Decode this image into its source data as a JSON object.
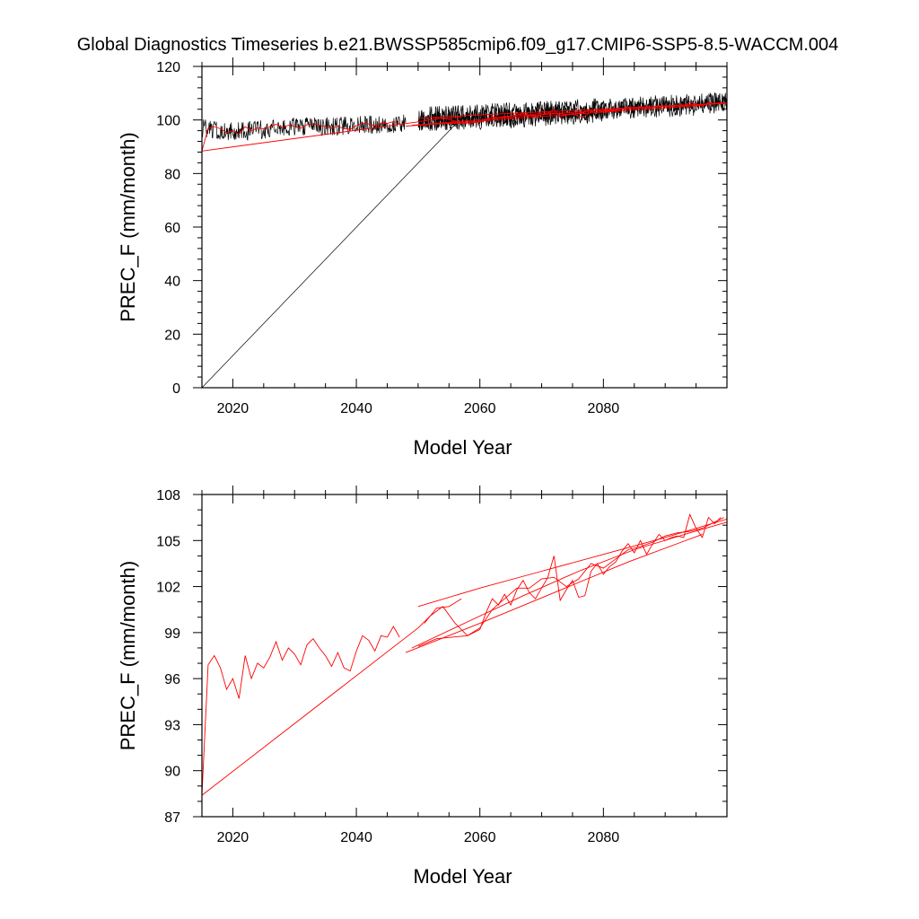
{
  "figure": {
    "title": "Global Diagnostics Timeseries b.e21.BWSSP585cmip6.f09_g17.CMIP6-SSP5-8.5-WACCM.004"
  },
  "colors": {
    "monthly": "#000000",
    "annual": "#ff0000",
    "axes": "#000000",
    "background": "#ffffff"
  },
  "chart_data": [
    {
      "type": "line",
      "xlabel": "Model Year",
      "ylabel": "PREC_F (mm/month)",
      "xlim": [
        2015,
        2100
      ],
      "ylim": [
        0,
        120
      ],
      "xticks": [
        2020,
        2040,
        2060,
        2080
      ],
      "yticks": [
        0,
        20,
        40,
        60,
        80,
        100,
        120
      ],
      "grid": false,
      "series": [
        {
          "color": "#000000",
          "description_of_values": "monthly-mean segments, plotted in file order",
          "segments": [
            {
              "x": [
                2015.0,
                2056.5
              ],
              "y": [
                0,
                99.5
              ]
            },
            {
              "x": [
                2015.0,
                2020.0,
                2025.0,
                2030.0,
                2035.0,
                2040.0,
                2045.0,
                2048.0
              ],
              "y": [
                97,
                95.5,
                96.5,
                97.5,
                97.5,
                98,
                98.5,
                99
              ]
            },
            {
              "x": [
                2050.0,
                2055.0,
                2060.0,
                2065.0,
                2070.0,
                2075.0,
                2080.0,
                2085.0,
                2090.0,
                2095.0,
                2100.0
              ],
              "y": [
                100,
                100.5,
                101,
                101.5,
                102,
                102.5,
                103.5,
                104,
                104.5,
                105,
                106
              ]
            },
            {
              "x": [
                2050.0,
                2060.0,
                2070.0,
                2080.0,
                2090.0,
                2100.0
              ],
              "y": [
                101.5,
                102.5,
                103.5,
                105,
                106,
                107
              ]
            },
            {
              "x": [
                2050.0,
                2060.0,
                2070.0,
                2080.0
              ],
              "y": [
                99,
                100,
                101,
                102.5
              ]
            }
          ]
        },
        {
          "color": "#ff0000",
          "description_of_values": "annual-mean segments, plotted in file order",
          "segments": [
            {
              "x": [
                2015.0,
                2016.0,
                2017.0,
                2018.0,
                2019.0,
                2020.0,
                2021.0,
                2022.0,
                2023.0,
                2024.0,
                2025.0,
                2026.0,
                2027.0,
                2028.0,
                2029.0,
                2030.0,
                2031.0,
                2032.0,
                2033.0,
                2034.0,
                2035.0,
                2036.0,
                2037.0,
                2038.0,
                2039.0,
                2040.0,
                2041.0,
                2042.0,
                2043.0,
                2044.0,
                2045.0,
                2046.0,
                2047.0
              ],
              "y": [
                88.4,
                96.9,
                97.5,
                96.7,
                95.3,
                96.0,
                94.7,
                97.5,
                96.0,
                97.0,
                96.7,
                97.4,
                98.4,
                97.2,
                98.0,
                97.6,
                96.9,
                98.2,
                98.6,
                98.0,
                97.5,
                96.8,
                97.7,
                96.7,
                96.5,
                97.8,
                98.8,
                98.5,
                97.8,
                98.8,
                98.7,
                99.4,
                98.7
              ]
            },
            {
              "x": [
                2015.0,
                2050.0,
                2052.0,
                2054.0,
                2056.0,
                2058.0,
                2060.0,
                2062.0,
                2064.0,
                2066.0,
                2068.0,
                2070.0,
                2072.0,
                2074.0,
                2076.0,
                2078.0,
                2080.0,
                2082.0,
                2084.0,
                2086.0,
                2088.0,
                2090.0,
                2092.0,
                2094.0,
                2096.0,
                2098.0,
                2099.5
              ],
              "y": [
                88.4,
                99.3,
                100.1,
                100.7,
                99.6,
                98.8,
                99.3,
                100.5,
                101.2,
                101.9,
                101.9,
                102.5,
                102.6,
                102.0,
                102.5,
                103.5,
                103.2,
                103.8,
                104.4,
                104.6,
                104.9,
                105.3,
                105.5,
                105.6,
                105.8,
                106.2,
                106.5
              ]
            },
            {
              "x": [
                2051.0,
                2053.0,
                2055.0,
                2057.0
              ],
              "y": [
                99.6,
                100.6,
                100.7,
                101.2
              ]
            },
            {
              "x": [
                2050.0,
                2060.0,
                2070.0,
                2080.0,
                2090.0,
                2100.0
              ],
              "y": [
                100.7,
                101.9,
                103.0,
                104.1,
                105.2,
                106.4
              ]
            },
            {
              "x": [
                2048.0,
                2060.0,
                2072.0,
                2084.0,
                2096.0
              ],
              "y": [
                97.7,
                99.6,
                101.6,
                103.6,
                105.4
              ]
            },
            {
              "x": [
                2050.0,
                2053.0,
                2058.0,
                2060.0,
                2061.0,
                2062.0,
                2063.0,
                2064.0,
                2065.0,
                2066.0,
                2067.0,
                2068.0,
                2069.0,
                2070.0,
                2071.0,
                2072.0,
                2073.0,
                2074.0,
                2075.0,
                2076.0,
                2077.0,
                2078.0,
                2079.0,
                2080.0,
                2081.0,
                2082.0,
                2083.0,
                2084.0,
                2085.0,
                2086.0,
                2087.0,
                2088.0,
                2089.0,
                2090.0,
                2091.0,
                2092.0,
                2093.0,
                2094.0,
                2095.0,
                2096.0,
                2097.0,
                2098.0,
                2099.0
              ],
              "y": [
                98.1,
                98.6,
                98.8,
                99.2,
                100.3,
                101.2,
                100.8,
                101.5,
                100.8,
                101.8,
                102.4,
                101.6,
                101.2,
                101.9,
                102.6,
                104.0,
                101.1,
                101.8,
                102.4,
                101.3,
                101.4,
                103.0,
                103.5,
                102.8,
                103.3,
                103.6,
                104.3,
                104.8,
                104.2,
                105.0,
                104.1,
                104.8,
                105.4,
                105.0,
                105.2,
                105.3,
                105.2,
                106.7,
                105.8,
                105.2,
                106.5,
                106.1,
                106.5
              ]
            },
            {
              "x": [
                2049.0,
                2058.0,
                2067.0,
                2076.0,
                2085.0,
                2094.0,
                2100.0
              ],
              "y": [
                98.0,
                99.7,
                101.4,
                103.0,
                104.4,
                105.5,
                106.2
              ]
            }
          ]
        }
      ]
    },
    {
      "type": "line",
      "xlabel": "Model Year",
      "ylabel": "PREC_F (mm/month)",
      "xlim": [
        2015,
        2100
      ],
      "ylim": [
        87,
        108
      ],
      "xticks": [
        2020,
        2040,
        2060,
        2080
      ],
      "yticks": [
        87,
        90,
        93,
        96,
        99,
        102,
        105,
        108
      ],
      "grid": false,
      "series": [
        {
          "color": "#ff0000",
          "description_of_values": "annual-mean segments, plotted in file order",
          "segments": [
            {
              "x": [
                2015.0,
                2016.0,
                2017.0,
                2018.0,
                2019.0,
                2020.0,
                2021.0,
                2022.0,
                2023.0,
                2024.0,
                2025.0,
                2026.0,
                2027.0,
                2028.0,
                2029.0,
                2030.0,
                2031.0,
                2032.0,
                2033.0,
                2034.0,
                2035.0,
                2036.0,
                2037.0,
                2038.0,
                2039.0,
                2040.0,
                2041.0,
                2042.0,
                2043.0,
                2044.0,
                2045.0,
                2046.0,
                2047.0
              ],
              "y": [
                88.4,
                96.9,
                97.5,
                96.7,
                95.3,
                96.0,
                94.7,
                97.5,
                96.0,
                97.0,
                96.7,
                97.4,
                98.4,
                97.2,
                98.0,
                97.6,
                96.9,
                98.2,
                98.6,
                98.0,
                97.5,
                96.8,
                97.7,
                96.7,
                96.5,
                97.8,
                98.8,
                98.5,
                97.8,
                98.8,
                98.7,
                99.4,
                98.7
              ]
            },
            {
              "x": [
                2015.0,
                2050.0,
                2052.0,
                2054.0,
                2056.0,
                2058.0,
                2060.0,
                2062.0,
                2064.0,
                2066.0,
                2068.0,
                2070.0,
                2072.0,
                2074.0,
                2076.0,
                2078.0,
                2080.0,
                2082.0,
                2084.0,
                2086.0,
                2088.0,
                2090.0,
                2092.0,
                2094.0,
                2096.0,
                2098.0,
                2099.5
              ],
              "y": [
                88.4,
                99.3,
                100.1,
                100.7,
                99.6,
                98.8,
                99.3,
                100.5,
                101.2,
                101.9,
                101.9,
                102.5,
                102.6,
                102.0,
                102.5,
                103.5,
                103.2,
                103.8,
                104.4,
                104.6,
                104.9,
                105.3,
                105.5,
                105.6,
                105.8,
                106.2,
                106.5
              ]
            },
            {
              "x": [
                2051.0,
                2053.0,
                2055.0,
                2057.0
              ],
              "y": [
                99.6,
                100.6,
                100.7,
                101.2
              ]
            },
            {
              "x": [
                2050.0,
                2060.0,
                2070.0,
                2080.0,
                2090.0,
                2100.0
              ],
              "y": [
                100.7,
                101.9,
                103.0,
                104.1,
                105.2,
                106.4
              ]
            },
            {
              "x": [
                2048.0,
                2060.0,
                2072.0,
                2084.0,
                2096.0
              ],
              "y": [
                97.7,
                99.6,
                101.6,
                103.6,
                105.4
              ]
            },
            {
              "x": [
                2050.0,
                2053.0,
                2058.0,
                2060.0,
                2061.0,
                2062.0,
                2063.0,
                2064.0,
                2065.0,
                2066.0,
                2067.0,
                2068.0,
                2069.0,
                2070.0,
                2071.0,
                2072.0,
                2073.0,
                2074.0,
                2075.0,
                2076.0,
                2077.0,
                2078.0,
                2079.0,
                2080.0,
                2081.0,
                2082.0,
                2083.0,
                2084.0,
                2085.0,
                2086.0,
                2087.0,
                2088.0,
                2089.0,
                2090.0,
                2091.0,
                2092.0,
                2093.0,
                2094.0,
                2095.0,
                2096.0,
                2097.0,
                2098.0,
                2099.0
              ],
              "y": [
                98.1,
                98.6,
                98.8,
                99.2,
                100.3,
                101.2,
                100.8,
                101.5,
                100.8,
                101.8,
                102.4,
                101.6,
                101.2,
                101.9,
                102.6,
                104.0,
                101.1,
                101.8,
                102.4,
                101.3,
                101.4,
                103.0,
                103.5,
                102.8,
                103.3,
                103.6,
                104.3,
                104.8,
                104.2,
                105.0,
                104.1,
                104.8,
                105.4,
                105.0,
                105.2,
                105.3,
                105.2,
                106.7,
                105.8,
                105.2,
                106.5,
                106.1,
                106.5
              ]
            },
            {
              "x": [
                2049.0,
                2058.0,
                2067.0,
                2076.0,
                2085.0,
                2094.0,
                2100.0
              ],
              "y": [
                98.0,
                99.7,
                101.4,
                103.0,
                104.4,
                105.5,
                106.2
              ]
            }
          ]
        }
      ]
    }
  ]
}
